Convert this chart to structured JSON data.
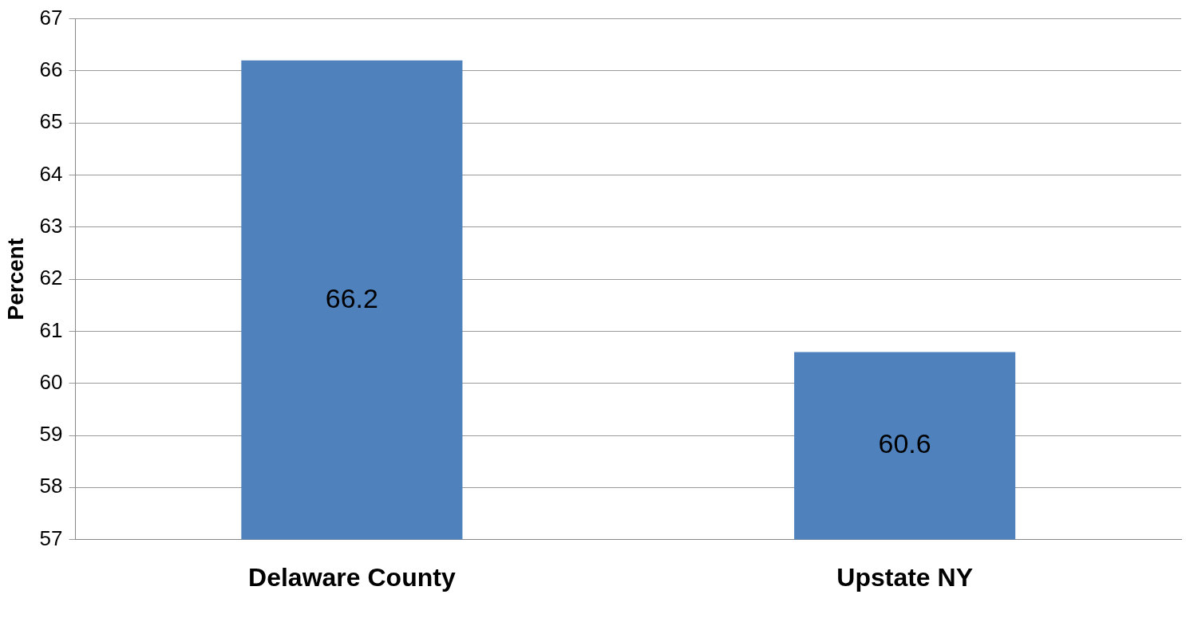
{
  "chart_data": {
    "type": "bar",
    "ylabel": "Percent",
    "categories": [
      "Delaware County",
      "Upstate NY"
    ],
    "values": [
      66.2,
      60.6
    ],
    "color": "#4f81bd",
    "ylim": [
      57,
      67
    ],
    "yticks": [
      57,
      58,
      59,
      60,
      61,
      62,
      63,
      64,
      65,
      66,
      67
    ],
    "grid": "y",
    "data_labels": true
  }
}
